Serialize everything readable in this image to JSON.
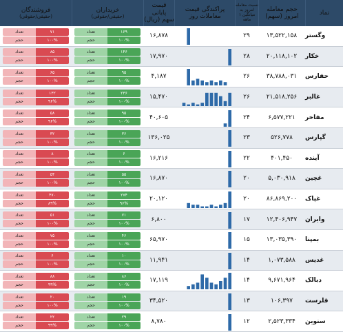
{
  "header": {
    "symbol": "نماد",
    "volume": "حجم معامله",
    "volume_sub": "امروز (سهم)",
    "ratio": "نسبت معامله امروز به میانگین ۱ ماهه",
    "spread": "پراکندگی قیمت",
    "spread_sub": "معاملات روز",
    "price": "قیمت پایانی",
    "price_sub": "سهم (ریال)",
    "buyers": "خریداران",
    "buyers_sub": "(حقیقی/حقوقی)",
    "sellers": "فروشندگان",
    "sellers_sub": "(حقیقی/حقوقی)"
  },
  "rows": [
    {
      "symbol": "وگستر",
      "volume": "۱۳,۵۲۲,۱۵۸",
      "ratio": "۲۹",
      "price": "۱۶,۸۷۸",
      "bars": [
        0,
        0,
        1,
        0,
        0,
        0,
        0,
        0,
        0,
        0,
        0,
        0
      ],
      "b_pct": "۱۰۰%",
      "b_cnt": "۱۶۹",
      "s_pct": "۱۰۰%",
      "s_cnt": "۷۱"
    },
    {
      "symbol": "خکار",
      "volume": "۲۰,۱۱۸,۱۰۲",
      "ratio": "۲۸",
      "price": "۱۷,۹۷۰",
      "bars": [
        0,
        0,
        0,
        0,
        0,
        0,
        0,
        0,
        0,
        0,
        0,
        1
      ],
      "b_pct": "۱۰۰%",
      "b_cnt": "۱۴۶",
      "s_pct": "۱۰۰%",
      "s_cnt": "۸۵"
    },
    {
      "symbol": "حفارس",
      "volume": "۳۸,۷۸۸,۰۳۱",
      "ratio": "۲۶",
      "price": "۴,۱۸۷",
      "bars": [
        0,
        0,
        1,
        0.3,
        0.4,
        0.3,
        0.2,
        0.3,
        0.2,
        0.3,
        0.2,
        0
      ],
      "b_pct": "۱۰۰%",
      "b_cnt": "۹۵",
      "s_pct": "۱۰۰%",
      "s_cnt": "۶۵"
    },
    {
      "symbol": "غالبر",
      "volume": "۲۱,۵۱۸,۲۵۶",
      "ratio": "۲۶",
      "price": "۱۵,۴۷۰",
      "bars": [
        0,
        0.2,
        0.1,
        0.2,
        0.1,
        0.2,
        0.8,
        0.8,
        0.8,
        0.6,
        0.3,
        0.8
      ],
      "b_pct": "۱۰۰%",
      "b_cnt": "۲۳۶",
      "s_pct": "۹۶%",
      "s_cnt": "۱۳۲"
    },
    {
      "symbol": "مفاخر",
      "volume": "۶,۵۷۷,۲۲۱",
      "ratio": "۲۴",
      "price": "۴۰,۶۰۵",
      "bars": [
        0,
        0,
        0,
        0,
        0,
        0,
        0,
        0,
        0,
        0,
        0.2,
        1
      ],
      "b_pct": "۱۰۰%",
      "b_cnt": "۹۵",
      "s_pct": "۹۶%",
      "s_cnt": "۵۸"
    },
    {
      "symbol": "گپارس",
      "volume": "۵۲۶,۷۷۸",
      "ratio": "۲۳",
      "price": "۱۳۶,۰۲۵",
      "bars": [
        0,
        0,
        0,
        0,
        0,
        0,
        0,
        0,
        0,
        0,
        0,
        1
      ],
      "b_pct": "۱۰۰%",
      "b_cnt": "۳۶",
      "s_pct": "۱۰۰%",
      "s_cnt": "۳۲"
    },
    {
      "symbol": "آینده",
      "volume": "۴۰۱,۴۵۰",
      "ratio": "۲۲",
      "price": "۱۶,۲۱۶",
      "bars": [
        0,
        0,
        0,
        0,
        0,
        0,
        0,
        0,
        0,
        0,
        0,
        1
      ],
      "b_pct": "۱۰۰%",
      "b_cnt": "۶",
      "s_pct": "۱۰۰%",
      "s_cnt": "۸"
    },
    {
      "symbol": "غچین",
      "volume": "۵,۰۳۰,۹۱۸",
      "ratio": "۲۰",
      "price": "۱۶,۸۷۰",
      "bars": [
        0,
        0,
        0,
        0,
        0,
        0,
        0,
        0,
        0,
        0,
        0,
        1
      ],
      "b_pct": "۱۰۰%",
      "b_cnt": "۵۵",
      "s_pct": "۱۰۰%",
      "s_cnt": "۵۴"
    },
    {
      "symbol": "غپاک",
      "volume": "۸۶,۸۶۹,۲۰۰",
      "ratio": "۲۰",
      "price": "۲۰,۱۲۰",
      "bars": [
        0,
        0,
        0.3,
        0.2,
        0.2,
        0.1,
        0.1,
        0.2,
        0.1,
        0.2,
        0.3,
        1
      ],
      "b_pct": "۹۶%",
      "b_cnt": "۲۷۴",
      "s_pct": "۸۹%",
      "s_cnt": "۴۷۰"
    },
    {
      "symbol": "وایران",
      "volume": "۱۲,۴۰۶,۹۴۷",
      "ratio": "۱۷",
      "price": "۶,۸۰۰",
      "bars": [
        0,
        0,
        0,
        0,
        0,
        0,
        0,
        0,
        0,
        0,
        0,
        1
      ],
      "b_pct": "۱۰۰%",
      "b_cnt": "۷۱",
      "s_pct": "۱۰۰%",
      "s_cnt": "۵۱"
    },
    {
      "symbol": "بمپنا",
      "volume": "۱۳,۰۳۵,۳۹۰",
      "ratio": "۱۵",
      "price": "۶۵,۹۷۰",
      "bars": [
        0,
        0,
        0,
        0,
        0,
        0,
        0,
        0,
        0,
        0,
        0,
        1
      ],
      "b_pct": "۱۰۰%",
      "b_cnt": "۴۶",
      "s_pct": "۱۰۰%",
      "s_cnt": "۷۵"
    },
    {
      "symbol": "غدیس",
      "volume": "۱,۰۷۳,۵۸۸",
      "ratio": "۱۴",
      "price": "۱۱,۹۴۱",
      "bars": [
        0,
        0,
        0,
        0,
        0,
        0,
        0,
        0,
        0,
        0,
        0,
        1
      ],
      "b_pct": "۱۰۰%",
      "b_cnt": "۱۰",
      "s_pct": "۱۰۰%",
      "s_cnt": "۶"
    },
    {
      "symbol": "دبالک",
      "volume": "۹,۶۷۱,۹۶۴",
      "ratio": "۱۴",
      "price": "۱۷,۱۱۹",
      "bars": [
        0,
        0,
        0.2,
        0.3,
        0.4,
        0.9,
        0.7,
        0.4,
        0.3,
        0.5,
        0.7,
        1
      ],
      "b_pct": "۱۰۰%",
      "b_cnt": "۸۶",
      "s_pct": "۹۹%",
      "s_cnt": "۸۸"
    },
    {
      "symbol": "قلرست",
      "volume": "۱۰۶,۳۹۷",
      "ratio": "۱۳",
      "price": "۳۴,۵۲۰",
      "bars": [
        0,
        0,
        0,
        0,
        0,
        0,
        0,
        0,
        0,
        0,
        0,
        1
      ],
      "b_pct": "۱۰۰%",
      "b_cnt": "۱۹",
      "s_pct": "۱۰۰%",
      "s_cnt": "۲۰"
    },
    {
      "symbol": "سنوین",
      "volume": "۲,۵۲۳,۳۳۴",
      "ratio": "۱۲",
      "price": "۸,۷۸۰",
      "bars": [
        0,
        0,
        0,
        0,
        0,
        0,
        0,
        0,
        0,
        0,
        0,
        1
      ],
      "b_pct": "۱۰۰%",
      "b_cnt": "۲۹",
      "s_pct": "۹۹%",
      "s_cnt": "۲۲"
    }
  ],
  "labels": {
    "count": "تعداد",
    "volume": "حجم",
    "volume_short": "سهم"
  },
  "colors": {
    "header": "#2d4a68",
    "buy": "#4aa557",
    "buy_light": "#9fd4a6",
    "sell": "#d94a52",
    "sell_light": "#f2b5b8",
    "bar": "#2e6aa8"
  }
}
